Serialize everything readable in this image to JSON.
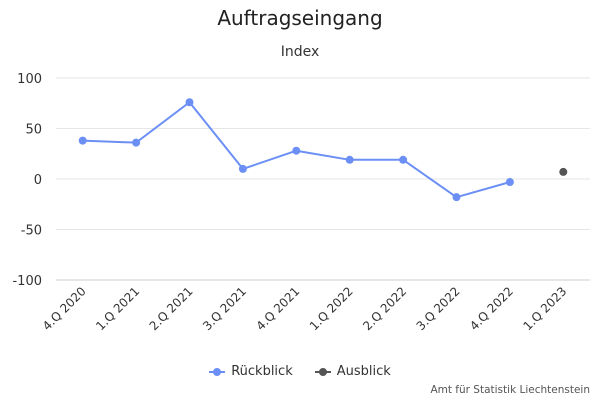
{
  "chart_data": {
    "type": "line",
    "title": "Auftragseingang",
    "subtitle": "Index",
    "categories": [
      "4.Q 2020",
      "1.Q 2021",
      "2.Q 2021",
      "3.Q 2021",
      "4.Q 2021",
      "1.Q 2022",
      "2.Q 2022",
      "3.Q 2022",
      "4.Q 2022",
      "1.Q 2023"
    ],
    "series": [
      {
        "name": "Rückblick",
        "color": "#6b8ff5",
        "values": [
          38,
          36,
          76,
          10,
          28,
          19,
          19,
          -18,
          -3,
          null
        ]
      },
      {
        "name": "Ausblick",
        "color": "#555555",
        "values": [
          null,
          null,
          null,
          null,
          null,
          null,
          null,
          null,
          null,
          7
        ]
      }
    ],
    "yticks": [
      100,
      50,
      0,
      -50,
      -100
    ],
    "ylim": [
      -100,
      100
    ],
    "grid": true,
    "legend_position": "bottom-center"
  },
  "credits": "Amt für Statistik Liechtenstein"
}
